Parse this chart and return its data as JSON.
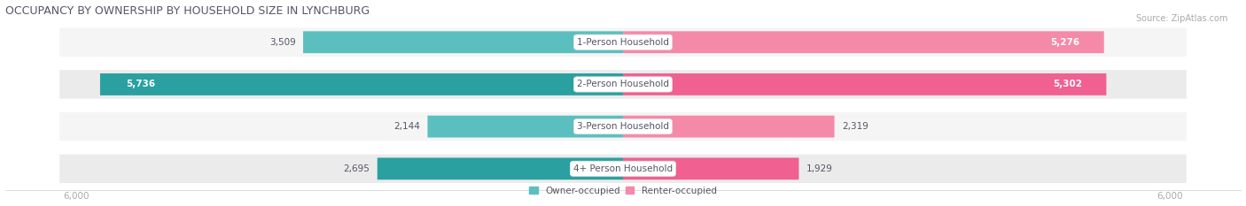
{
  "title": "OCCUPANCY BY OWNERSHIP BY HOUSEHOLD SIZE IN LYNCHBURG",
  "source": "Source: ZipAtlas.com",
  "categories": [
    "1-Person Household",
    "2-Person Household",
    "3-Person Household",
    "4+ Person Household"
  ],
  "owner_values": [
    3509,
    5736,
    2144,
    2695
  ],
  "renter_values": [
    5276,
    5302,
    2319,
    1929
  ],
  "max_val": 6000,
  "owner_color_1": "#5bbfbf",
  "owner_color_2": "#2aa0a0",
  "renter_color_1": "#f589a8",
  "renter_color_2": "#f06090",
  "owner_color": "#4bbfc0",
  "renter_color": "#f07898",
  "row_bg_color": "#ebebeb",
  "row_bg_alt": "#f5f5f5",
  "label_color": "#555566",
  "title_color": "#555566",
  "axis_label_color": "#aaaaaa",
  "background_color": "#ffffff",
  "legend_owner": "Owner-occupied",
  "legend_renter": "Renter-occupied",
  "white": "#ffffff"
}
